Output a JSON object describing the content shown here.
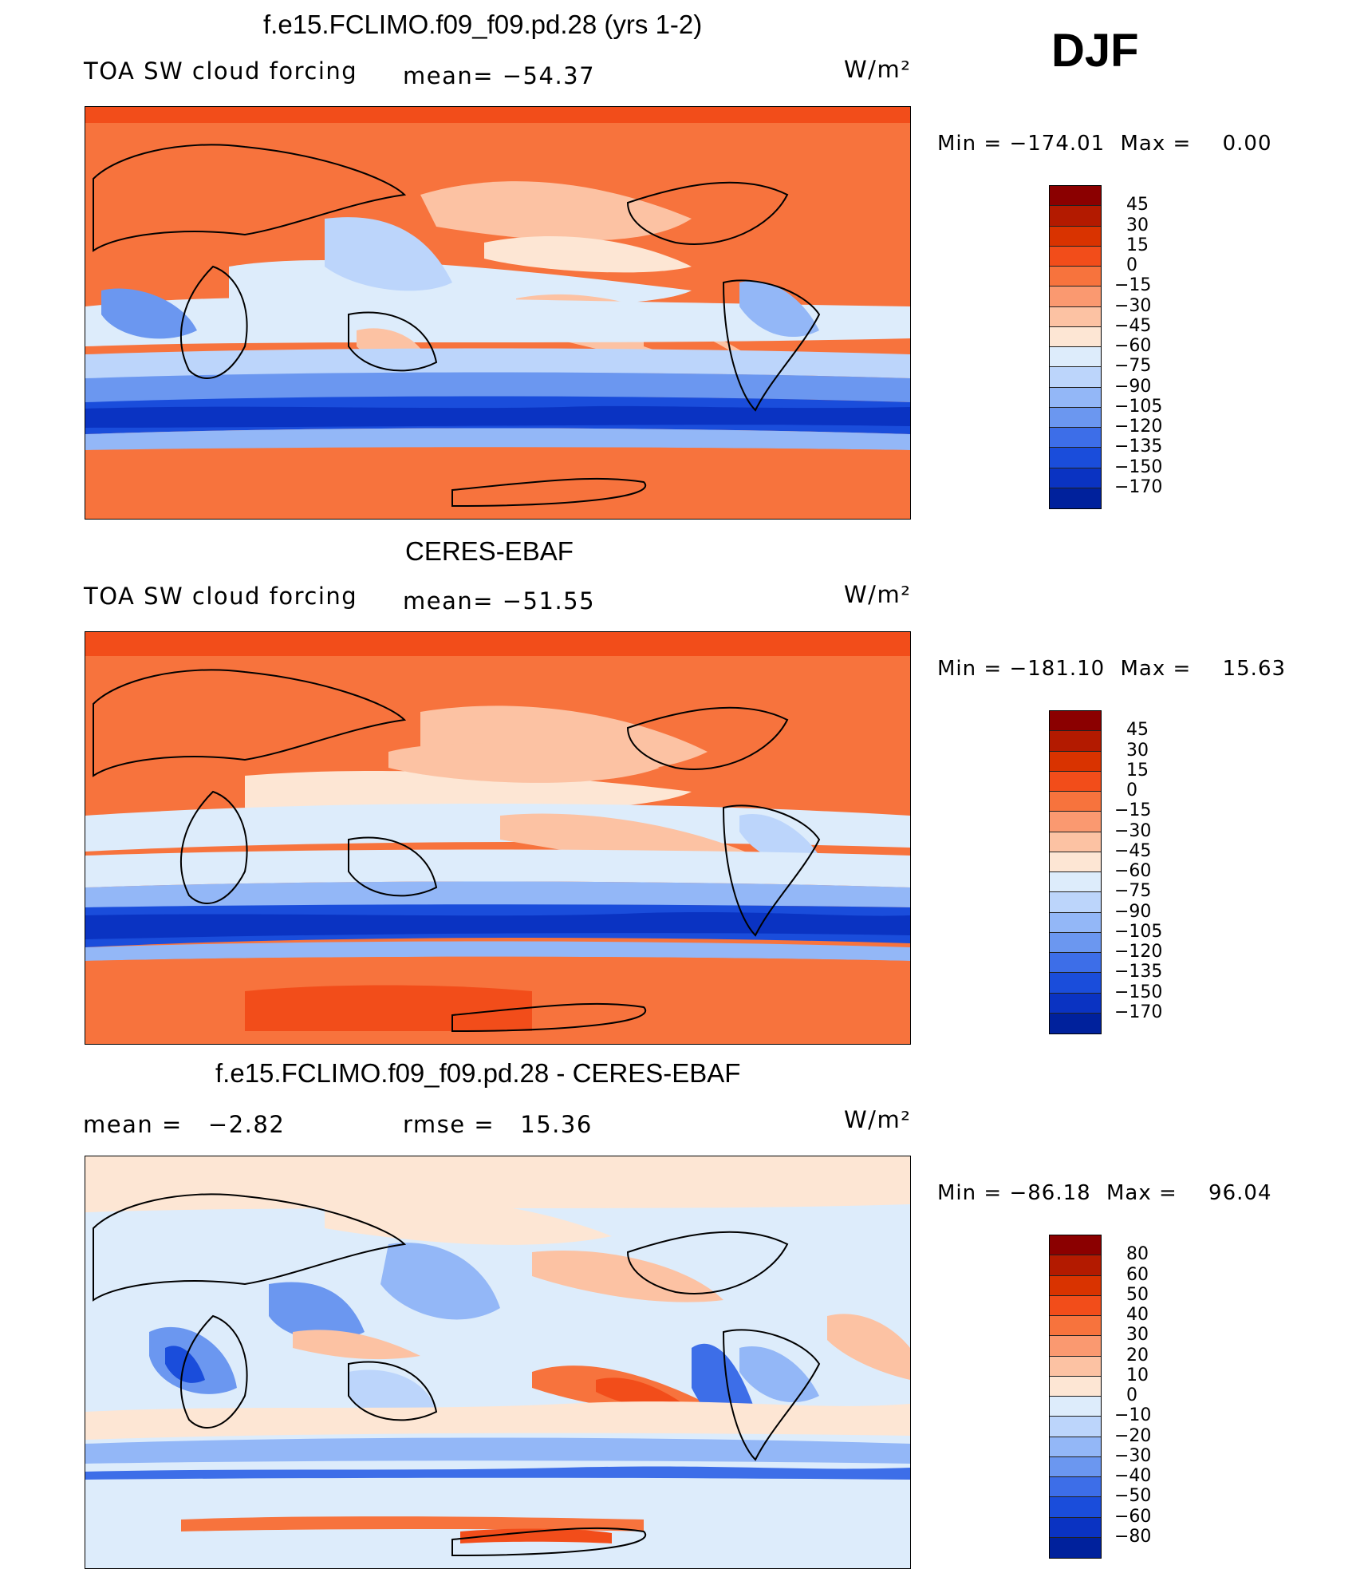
{
  "season": "DJF",
  "panels": [
    {
      "title": "f.e15.FCLIMO.f09_f09.pd.28 (yrs 1-2)",
      "left_label": "TOA SW cloud forcing",
      "center_label": "mean= −54.37",
      "units": "W/m²",
      "min_label": "Min",
      "min_value": "−174.01",
      "max_label": "Max",
      "max_value": "0.00",
      "colorbar_ticks": [
        "45",
        "30",
        "15",
        "0",
        "−15",
        "−30",
        "−45",
        "−60",
        "−75",
        "−90",
        "−105",
        "−120",
        "−135",
        "−150",
        "−170"
      ]
    },
    {
      "title": "CERES-EBAF",
      "left_label": "TOA SW cloud forcing",
      "center_label": "mean= −51.55",
      "units": "W/m²",
      "min_label": "Min",
      "min_value": "−181.10",
      "max_label": "Max",
      "max_value": "15.63",
      "colorbar_ticks": [
        "45",
        "30",
        "15",
        "0",
        "−15",
        "−30",
        "−45",
        "−60",
        "−75",
        "−90",
        "−105",
        "−120",
        "−135",
        "−150",
        "−170"
      ]
    },
    {
      "title": "f.e15.FCLIMO.f09_f09.pd.28 - CERES-EBAF",
      "left_label": "mean =   −2.82",
      "center_label": "rmse =   15.36",
      "units": "W/m²",
      "min_label": "Min",
      "min_value": "−86.18",
      "max_label": "Max",
      "max_value": "96.04",
      "colorbar_ticks": [
        "80",
        "60",
        "50",
        "40",
        "30",
        "20",
        "10",
        "0",
        "−10",
        "−20",
        "−30",
        "−40",
        "−50",
        "−60",
        "−80"
      ]
    }
  ],
  "colorbar_colors": [
    "#8b0000",
    "#b31a00",
    "#d93300",
    "#f24d1a",
    "#f7733d",
    "#fa9970",
    "#fcc2a3",
    "#fde6d4",
    "#ddecfb",
    "#bcd5fb",
    "#93b7f7",
    "#6b97f0",
    "#3d6ee8",
    "#1a4ddb",
    "#0a33c2",
    "#00219c"
  ]
}
